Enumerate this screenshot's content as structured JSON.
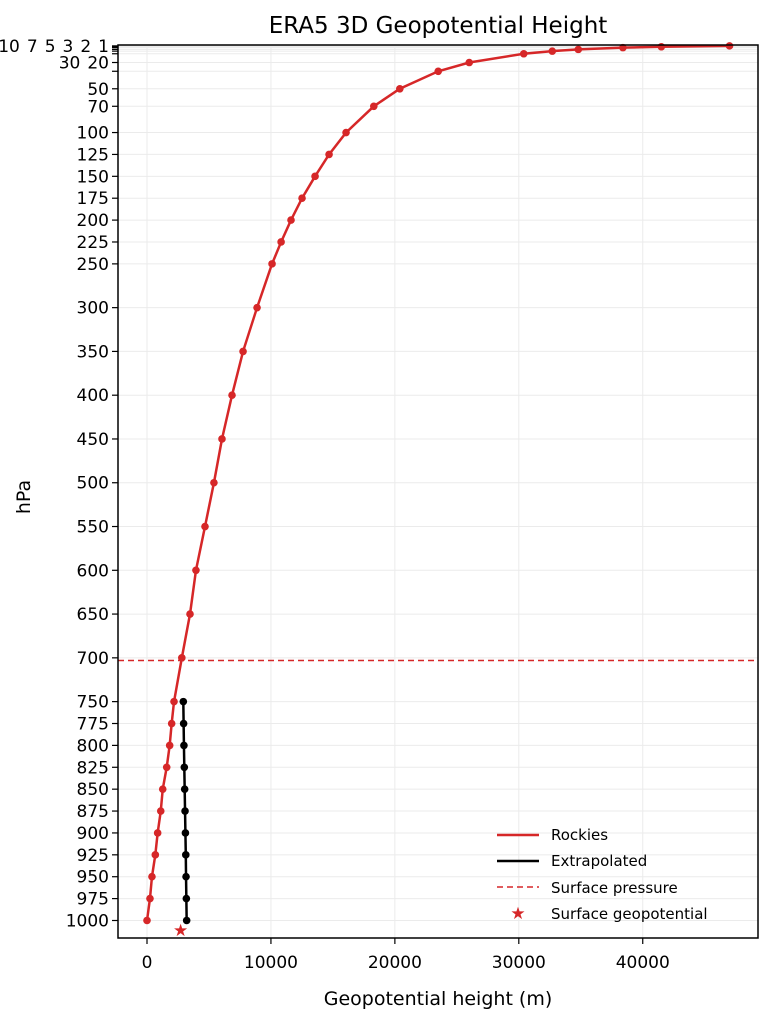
{
  "chart_data": {
    "type": "line",
    "title": "ERA5 3D Geopotential Height",
    "xlabel": "Geopotential height (m)",
    "ylabel": "hPa",
    "xlim": [
      -2340,
      49300
    ],
    "ylim": [
      1020,
      0
    ],
    "y_inverted": true,
    "grid": true,
    "legend_position": "bottom-right",
    "x_ticks": [
      0,
      10000,
      20000,
      30000,
      40000
    ],
    "y_ticks": [
      1,
      2,
      3,
      5,
      7,
      10,
      20,
      30,
      50,
      70,
      100,
      125,
      150,
      175,
      200,
      225,
      250,
      300,
      350,
      400,
      450,
      500,
      550,
      600,
      650,
      700,
      750,
      775,
      800,
      825,
      850,
      875,
      900,
      925,
      950,
      975,
      1000
    ],
    "series": [
      {
        "name": "Rockies",
        "color": "#d62728",
        "marker": "circle",
        "pressure": [
          1,
          2,
          3,
          5,
          7,
          10,
          20,
          30,
          50,
          70,
          100,
          125,
          150,
          175,
          200,
          225,
          250,
          300,
          350,
          400,
          450,
          500,
          550,
          600,
          650,
          700,
          750,
          775,
          800,
          825,
          850,
          875,
          900,
          925,
          950,
          975,
          1000
        ],
        "height": [
          47000,
          41500,
          38400,
          34800,
          32700,
          30400,
          26000,
          23500,
          20400,
          18300,
          16060,
          14690,
          13560,
          12510,
          11620,
          10820,
          10090,
          8880,
          7750,
          6860,
          6050,
          5400,
          4680,
          3950,
          3470,
          2810,
          2180,
          1990,
          1830,
          1590,
          1270,
          1110,
          860,
          670,
          400,
          240,
          0
        ]
      },
      {
        "name": "Extrapolated",
        "color": "#000000",
        "marker": "circle",
        "pressure": [
          750,
          775,
          800,
          825,
          850,
          875,
          900,
          925,
          950,
          975,
          1000
        ],
        "height": [
          2930,
          2955,
          2980,
          3010,
          3040,
          3070,
          3100,
          3130,
          3150,
          3175,
          3200
        ]
      }
    ],
    "surface_pressure": {
      "name": "Surface pressure",
      "value": 703,
      "color": "#d62728",
      "style": "dashed"
    },
    "surface_geopotential": {
      "name": "Surface geopotential",
      "height": 2710,
      "pressure": 1011,
      "color": "#d62728",
      "marker": "star"
    }
  }
}
